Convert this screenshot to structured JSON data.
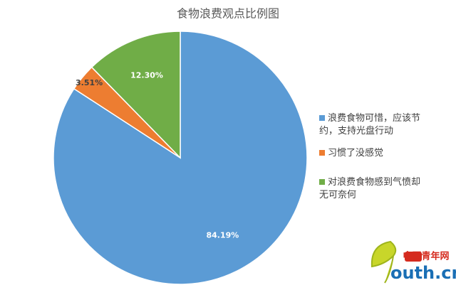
{
  "chart_data": {
    "type": "pie",
    "title": "食物浪费观点比例图",
    "categories": [
      "浪费食物可惜，应该节约，支持光盘行动",
      "习惯了没感觉",
      "对浪费食物感到气愤却无可奈何"
    ],
    "values": [
      84.19,
      3.51,
      12.3
    ],
    "value_labels": [
      "84.19%",
      "3.51%",
      "12.30%"
    ],
    "colors": [
      "#5b9bd5",
      "#ed7d31",
      "#70ad47"
    ],
    "legend": "right"
  },
  "watermark": {
    "brand": "中国青年网",
    "site": "outh.cn"
  }
}
